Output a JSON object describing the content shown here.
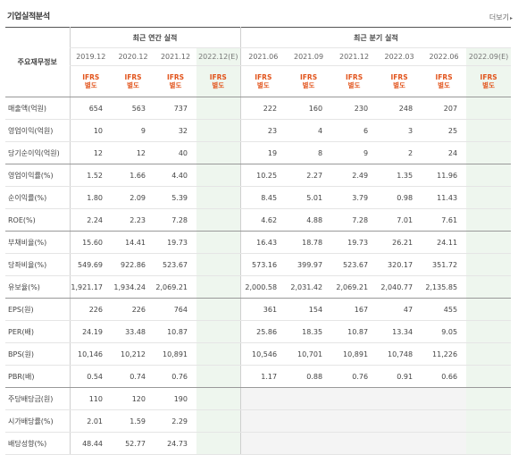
{
  "header": {
    "title": "기업실적분석",
    "more_label": "더보기"
  },
  "table": {
    "side_header": "주요재무정보",
    "annual_group": "최근 연간 실적",
    "quarter_group": "최근 분기 실적",
    "annual_dates": [
      "2019.12",
      "2020.12",
      "2021.12",
      "2022.12(E)"
    ],
    "quarter_dates": [
      "2021.06",
      "2021.09",
      "2021.12",
      "2022.03",
      "2022.06",
      "2022.09(E)"
    ],
    "ifrs_label": "IFRS",
    "ifrs_sub": "별도",
    "rows": [
      {
        "label": "매출액(억원)",
        "annual": [
          "654",
          "563",
          "737",
          ""
        ],
        "quarter": [
          "222",
          "160",
          "230",
          "248",
          "207",
          ""
        ]
      },
      {
        "label": "영업이익(억원)",
        "annual": [
          "10",
          "9",
          "32",
          ""
        ],
        "quarter": [
          "23",
          "4",
          "6",
          "3",
          "25",
          ""
        ]
      },
      {
        "label": "당기순이익(억원)",
        "annual": [
          "12",
          "12",
          "40",
          ""
        ],
        "quarter": [
          "19",
          "8",
          "9",
          "2",
          "24",
          ""
        ]
      },
      {
        "label": "영업이익률(%)",
        "annual": [
          "1.52",
          "1.66",
          "4.40",
          ""
        ],
        "quarter": [
          "10.25",
          "2.27",
          "2.49",
          "1.35",
          "11.96",
          ""
        ]
      },
      {
        "label": "순이익률(%)",
        "annual": [
          "1.80",
          "2.09",
          "5.39",
          ""
        ],
        "quarter": [
          "8.45",
          "5.01",
          "3.79",
          "0.98",
          "11.43",
          ""
        ]
      },
      {
        "label": "ROE(%)",
        "annual": [
          "2.24",
          "2.23",
          "7.28",
          ""
        ],
        "quarter": [
          "4.62",
          "4.88",
          "7.28",
          "7.01",
          "7.61",
          ""
        ]
      },
      {
        "label": "부채비율(%)",
        "annual": [
          "15.60",
          "14.41",
          "19.73",
          ""
        ],
        "quarter": [
          "16.43",
          "18.78",
          "19.73",
          "26.21",
          "24.11",
          ""
        ]
      },
      {
        "label": "당좌비율(%)",
        "annual": [
          "549.69",
          "922.86",
          "523.67",
          ""
        ],
        "quarter": [
          "573.16",
          "399.97",
          "523.67",
          "320.17",
          "351.72",
          ""
        ]
      },
      {
        "label": "유보율(%)",
        "annual": [
          "1,921.17",
          "1,934.24",
          "2,069.21",
          ""
        ],
        "quarter": [
          "2,000.58",
          "2,031.42",
          "2,069.21",
          "2,040.77",
          "2,135.85",
          ""
        ]
      },
      {
        "label": "EPS(원)",
        "annual": [
          "226",
          "226",
          "764",
          ""
        ],
        "quarter": [
          "361",
          "154",
          "167",
          "47",
          "455",
          ""
        ]
      },
      {
        "label": "PER(배)",
        "annual": [
          "24.19",
          "33.48",
          "10.87",
          ""
        ],
        "quarter": [
          "25.86",
          "18.35",
          "10.87",
          "13.34",
          "9.05",
          ""
        ]
      },
      {
        "label": "BPS(원)",
        "annual": [
          "10,146",
          "10,212",
          "10,891",
          ""
        ],
        "quarter": [
          "10,546",
          "10,701",
          "10,891",
          "10,748",
          "11,226",
          ""
        ]
      },
      {
        "label": "PBR(배)",
        "annual": [
          "0.54",
          "0.74",
          "0.76",
          ""
        ],
        "quarter": [
          "1.17",
          "0.88",
          "0.76",
          "0.91",
          "0.66",
          ""
        ]
      },
      {
        "label": "주당배당금(원)",
        "annual": [
          "110",
          "120",
          "190",
          ""
        ],
        "quarter": [
          "",
          "",
          "",
          "",
          "",
          ""
        ]
      },
      {
        "label": "시가배당률(%)",
        "annual": [
          "2.01",
          "1.59",
          "2.29",
          ""
        ],
        "quarter": [
          "",
          "",
          "",
          "",
          "",
          ""
        ]
      },
      {
        "label": "배당성향(%)",
        "annual": [
          "48.44",
          "52.77",
          "24.73",
          ""
        ],
        "quarter": [
          "",
          "",
          "",
          "",
          "",
          ""
        ]
      }
    ]
  },
  "colors": {
    "ifrs": "#e2541c",
    "estimate_bg": "#eef6ee"
  }
}
